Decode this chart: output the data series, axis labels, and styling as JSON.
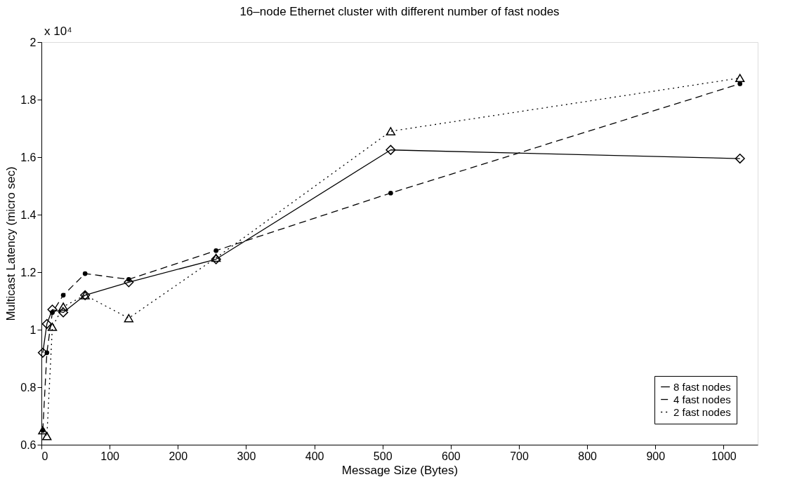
{
  "chart_data": {
    "type": "line",
    "title": "16–node Ethernet cluster with different number of fast nodes",
    "xlabel": "Message Size (Bytes)",
    "ylabel": "Multicast Latency (micro sec)",
    "annotations": [
      "x 10⁴"
    ],
    "xlim": [
      0,
      1050
    ],
    "xticks": [
      0,
      100,
      200,
      300,
      400,
      500,
      600,
      700,
      800,
      900,
      1000
    ],
    "ylim": [
      0.6,
      2
    ],
    "yticks": [
      0.6,
      0.8,
      1,
      1.2,
      1.4,
      1.6,
      1.8,
      2
    ],
    "grid": false,
    "legend": "bottom right",
    "series": [
      {
        "name": "8 fast nodes",
        "color": "#000000",
        "marker": "diamond",
        "line_style": "solid",
        "x": [
          2,
          8,
          16,
          32,
          64,
          128,
          256,
          512,
          1024
        ],
        "values": [
          0.92,
          1.02,
          1.07,
          1.06,
          1.12,
          1.165,
          1.245,
          1.625,
          1.595
        ]
      },
      {
        "name": "4 fast nodes",
        "color": "#000000",
        "marker": "circle",
        "line_style": "dashed",
        "x": [
          2,
          8,
          16,
          32,
          64,
          128,
          256,
          512,
          1024
        ],
        "values": [
          0.65,
          0.92,
          1.06,
          1.12,
          1.195,
          1.175,
          1.275,
          1.475,
          1.855
        ]
      },
      {
        "name": "2 fast nodes",
        "color": "#000000",
        "marker": "triangle",
        "line_style": "dotted",
        "x": [
          2,
          8,
          16,
          32,
          64,
          128,
          256,
          512,
          1024
        ],
        "values": [
          0.65,
          0.63,
          1.01,
          1.08,
          1.12,
          1.04,
          1.25,
          1.69,
          1.875
        ]
      }
    ]
  }
}
